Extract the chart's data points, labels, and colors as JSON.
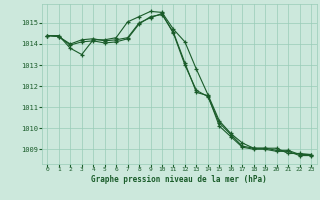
{
  "background_color": "#cce8dc",
  "grid_color": "#99ccb8",
  "line_color": "#1a5c2a",
  "xlabel_color": "#1a5c2a",
  "title": "Graphe pression niveau de la mer (hPa)",
  "xlim": [
    -0.5,
    23.5
  ],
  "ylim": [
    1008.3,
    1015.9
  ],
  "yticks": [
    1009,
    1010,
    1011,
    1012,
    1013,
    1014,
    1015
  ],
  "xticks": [
    0,
    1,
    2,
    3,
    4,
    5,
    6,
    7,
    8,
    9,
    10,
    11,
    12,
    13,
    14,
    15,
    16,
    17,
    18,
    19,
    20,
    21,
    22,
    23
  ],
  "series": [
    [
      1014.4,
      1014.4,
      1013.8,
      1013.5,
      1014.2,
      1014.2,
      1014.3,
      1015.05,
      1015.3,
      1015.55,
      1015.5,
      1014.7,
      1014.1,
      1012.8,
      1011.6,
      1010.35,
      1009.75,
      1009.3,
      1009.05,
      1009.05,
      1009.05,
      1008.8,
      1008.8,
      1008.75
    ],
    [
      1014.4,
      1014.35,
      1014.0,
      1014.2,
      1014.25,
      1014.15,
      1014.2,
      1014.3,
      1015.0,
      1015.25,
      1015.45,
      1014.5,
      1013.0,
      1011.8,
      1011.5,
      1010.25,
      1009.7,
      1009.15,
      1009.05,
      1009.05,
      1008.95,
      1008.95,
      1008.75,
      1008.75
    ],
    [
      1014.4,
      1014.35,
      1013.95,
      1014.1,
      1014.15,
      1014.05,
      1014.1,
      1014.25,
      1014.95,
      1015.3,
      1015.4,
      1014.55,
      1013.1,
      1011.7,
      1011.55,
      1010.1,
      1009.6,
      1009.1,
      1009.0,
      1009.0,
      1008.9,
      1008.9,
      1008.7,
      1008.7
    ]
  ]
}
